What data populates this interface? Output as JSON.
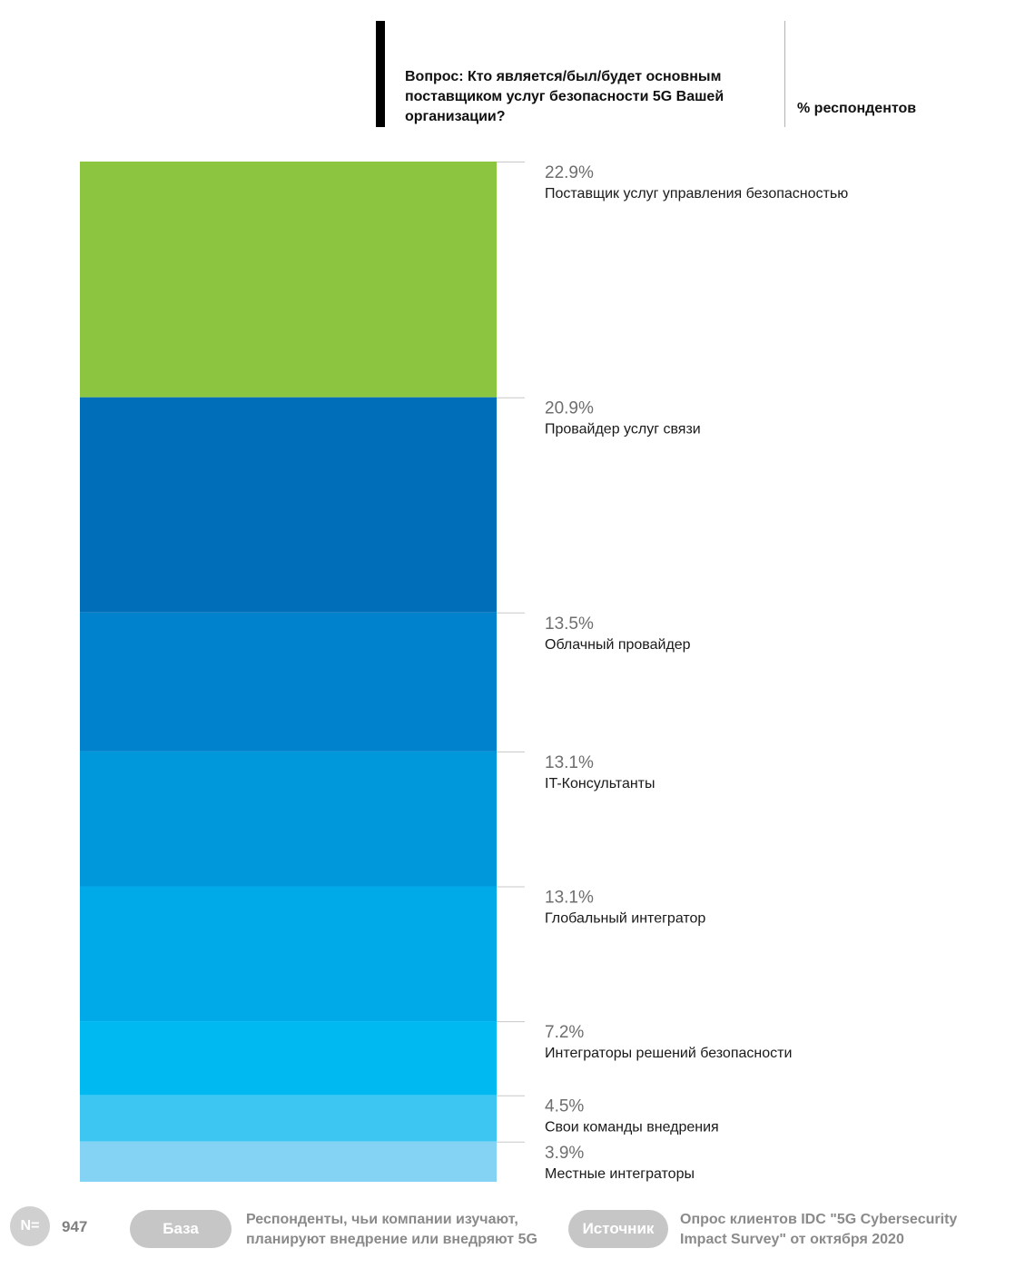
{
  "header": {
    "question": "Вопрос: Кто является/был/будет основным поставщиком услуг безопасности 5G Вашей организации?",
    "unit_label": "% респондентов"
  },
  "chart_data": {
    "type": "bar",
    "orientation": "stacked-vertical",
    "unit": "%",
    "series": [
      {
        "label": "Поставщик услуг управления безопасностью",
        "value": 22.9,
        "display": "22.9%",
        "color": "#8cc640"
      },
      {
        "label": "Провайдер услуг связи",
        "value": 20.9,
        "display": "20.9%",
        "color": "#006eb8"
      },
      {
        "label": "Облачный провайдер",
        "value": 13.5,
        "display": "13.5%",
        "color": "#0082cc"
      },
      {
        "label": "IT-Консультанты",
        "value": 13.1,
        "display": "13.1%",
        "color": "#0098da"
      },
      {
        "label": "Глобальный интегратор",
        "value": 13.1,
        "display": "13.1%",
        "color": "#00a9e8"
      },
      {
        "label": "Интеграторы решений безопасности",
        "value": 7.2,
        "display": "7.2%",
        "color": "#00b9f0"
      },
      {
        "label": "Свои команды внедрения",
        "value": 4.5,
        "display": "4.5%",
        "color": "#3ec6f3"
      },
      {
        "label": "Местные интеграторы",
        "value": 3.9,
        "display": "3.9%",
        "color": "#85d3f4"
      }
    ]
  },
  "footer": {
    "n_label": "N=",
    "n_value": "947",
    "base_label": "База",
    "base_text": "Респонденты, чьи компании изучают, планируют внедрение или внедряют 5G",
    "source_label": "Источник",
    "source_text": "Опрос клиентов IDC \"5G Cybersecurity Impact Survey\" от октября 2020"
  }
}
